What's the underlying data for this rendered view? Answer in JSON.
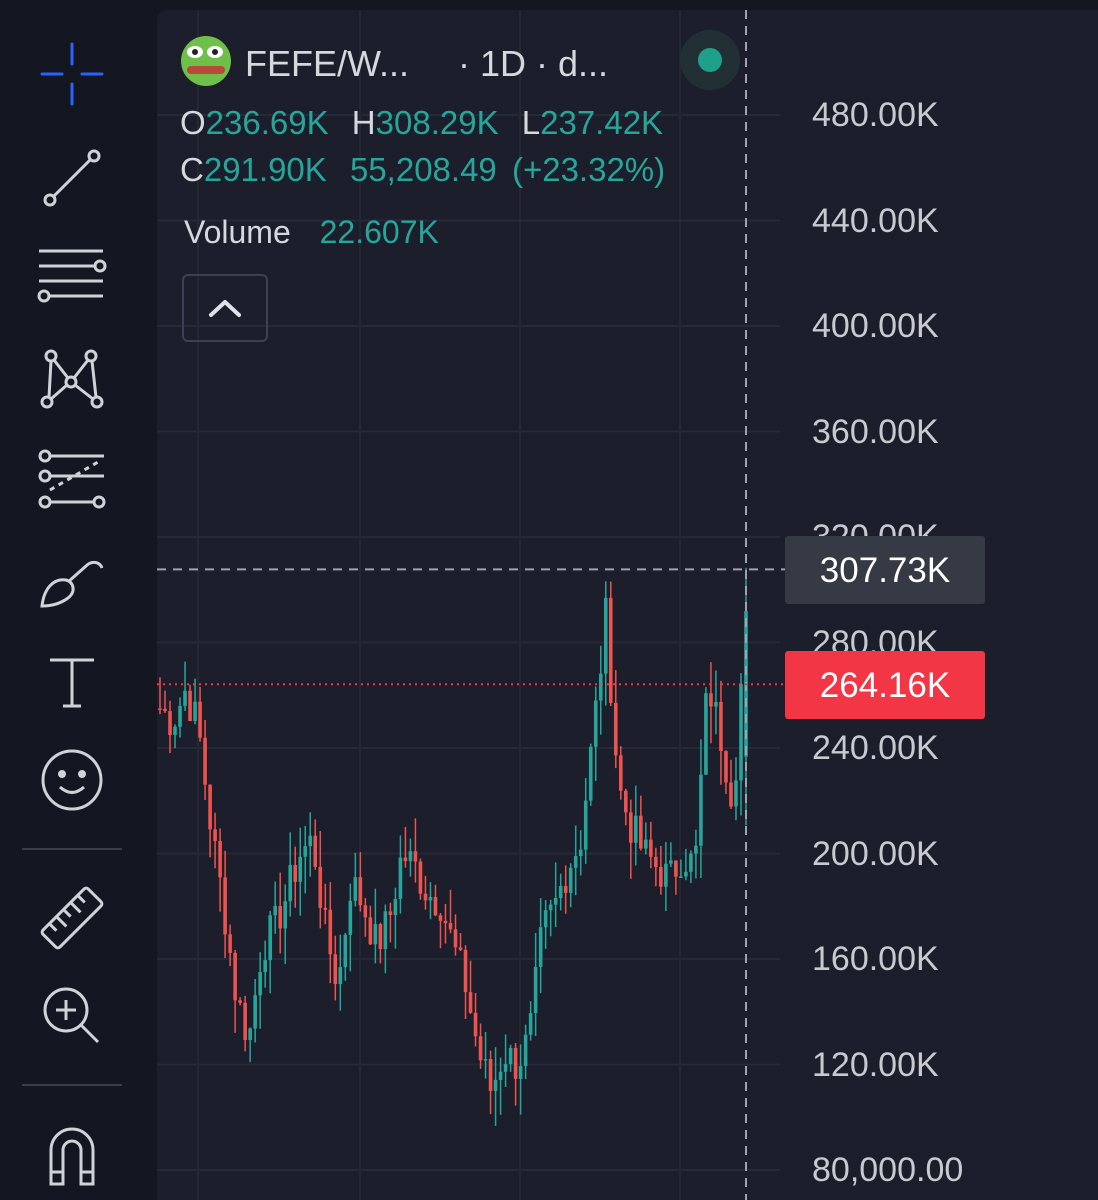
{
  "symbol": {
    "pair": "FEFE/W...",
    "timeframe": "· 1D · d...",
    "status_color": "#1fa08a"
  },
  "ohlc": {
    "open_label": "O",
    "open": "236.69K",
    "high_label": "H",
    "high": "308.29K",
    "low_label": "L",
    "low": "237.42K",
    "close_label": "C",
    "close": "291.90K",
    "change": "55,208.49",
    "change_pct": "(+23.32%)"
  },
  "volume": {
    "label": "Volume",
    "value": "22.607K"
  },
  "price_axis": {
    "ticks": [
      "480.00K",
      "440.00K",
      "400.00K",
      "360.00K",
      "320.00K",
      "280.00K",
      "240.00K",
      "200.00K",
      "160.00K",
      "120.00K",
      "80,000.00"
    ],
    "crosshair_price": "307.73K",
    "current_price": "264.16K"
  },
  "toolbar": {
    "tools": [
      "crosshair-icon",
      "trend-line-icon",
      "parallel-channel-icon",
      "pattern-icon",
      "fib-retracement-icon",
      "brush-icon",
      "text-tool-icon",
      "emoji-icon",
      "ruler-icon",
      "zoom-in-icon",
      "magnet-icon"
    ]
  },
  "colors": {
    "up": "#26a69a",
    "down": "#ef5350",
    "background": "#1c1f2b",
    "accent": "#2962ff",
    "price_tag": "#f23645"
  },
  "chart_data": {
    "type": "candlestick",
    "timeframe": "1D",
    "ylim": [
      80000,
      480000
    ],
    "y_ticks": [
      480000,
      440000,
      400000,
      360000,
      320000,
      280000,
      240000,
      200000,
      160000,
      120000,
      80000
    ],
    "crosshair_price": 307730,
    "current_price": 264160,
    "last_bar": {
      "open": 236690,
      "high": 308290,
      "low": 237420,
      "close": 291900,
      "volume": 22607
    },
    "approx_close_path": [
      255000,
      250000,
      262000,
      248000,
      210000,
      180000,
      145000,
      130000,
      165000,
      172000,
      185000,
      200000,
      205000,
      170000,
      150000,
      190000,
      180000,
      165000,
      175000,
      200000,
      195000,
      185000,
      182000,
      165000,
      150000,
      125000,
      110000,
      125000,
      120000,
      130000,
      170000,
      180000,
      195000,
      205000,
      245000,
      290000,
      225000,
      210000,
      200000,
      195000,
      190000,
      200000,
      195000,
      265000,
      245000,
      220000,
      291900
    ]
  }
}
